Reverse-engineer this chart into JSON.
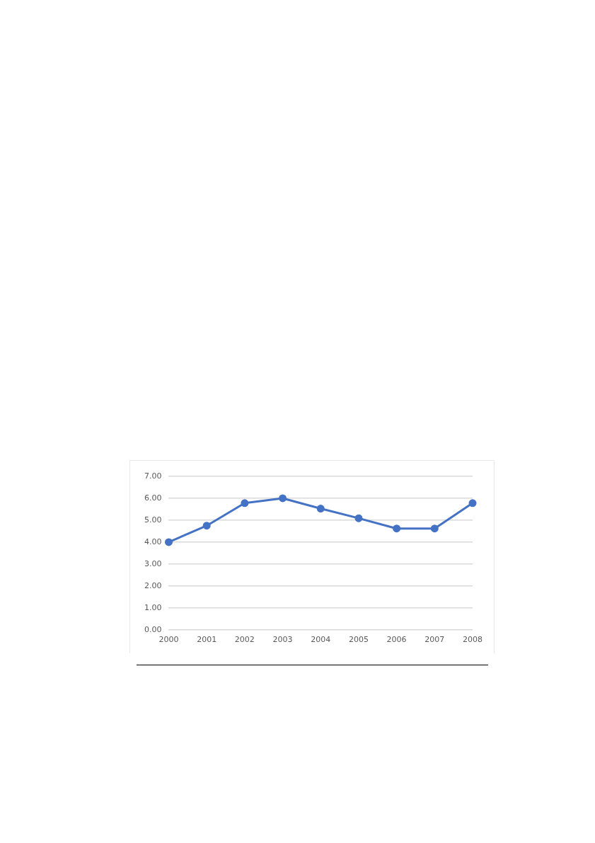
{
  "chart_data": {
    "type": "line",
    "categories": [
      "2000",
      "2001",
      "2002",
      "2003",
      "2004",
      "2005",
      "2006",
      "2007",
      "2008"
    ],
    "series": [
      {
        "color": "#4472c4",
        "values": [
          4.0,
          4.75,
          5.78,
          6.0,
          5.53,
          5.09,
          4.62,
          4.62,
          5.78
        ]
      }
    ],
    "ylim": [
      0,
      7
    ],
    "yticks": [
      {
        "value": 0,
        "label": "0.00"
      },
      {
        "value": 1,
        "label": "1.00"
      },
      {
        "value": 2,
        "label": "2.00"
      },
      {
        "value": 3,
        "label": "3.00"
      },
      {
        "value": 4,
        "label": "4.00"
      },
      {
        "value": 5,
        "label": "5.00"
      },
      {
        "value": 6,
        "label": "6.00"
      },
      {
        "value": 7,
        "label": "7.00"
      }
    ],
    "grid": "y",
    "legend": false,
    "marker": "circle",
    "line_style": "solid"
  }
}
